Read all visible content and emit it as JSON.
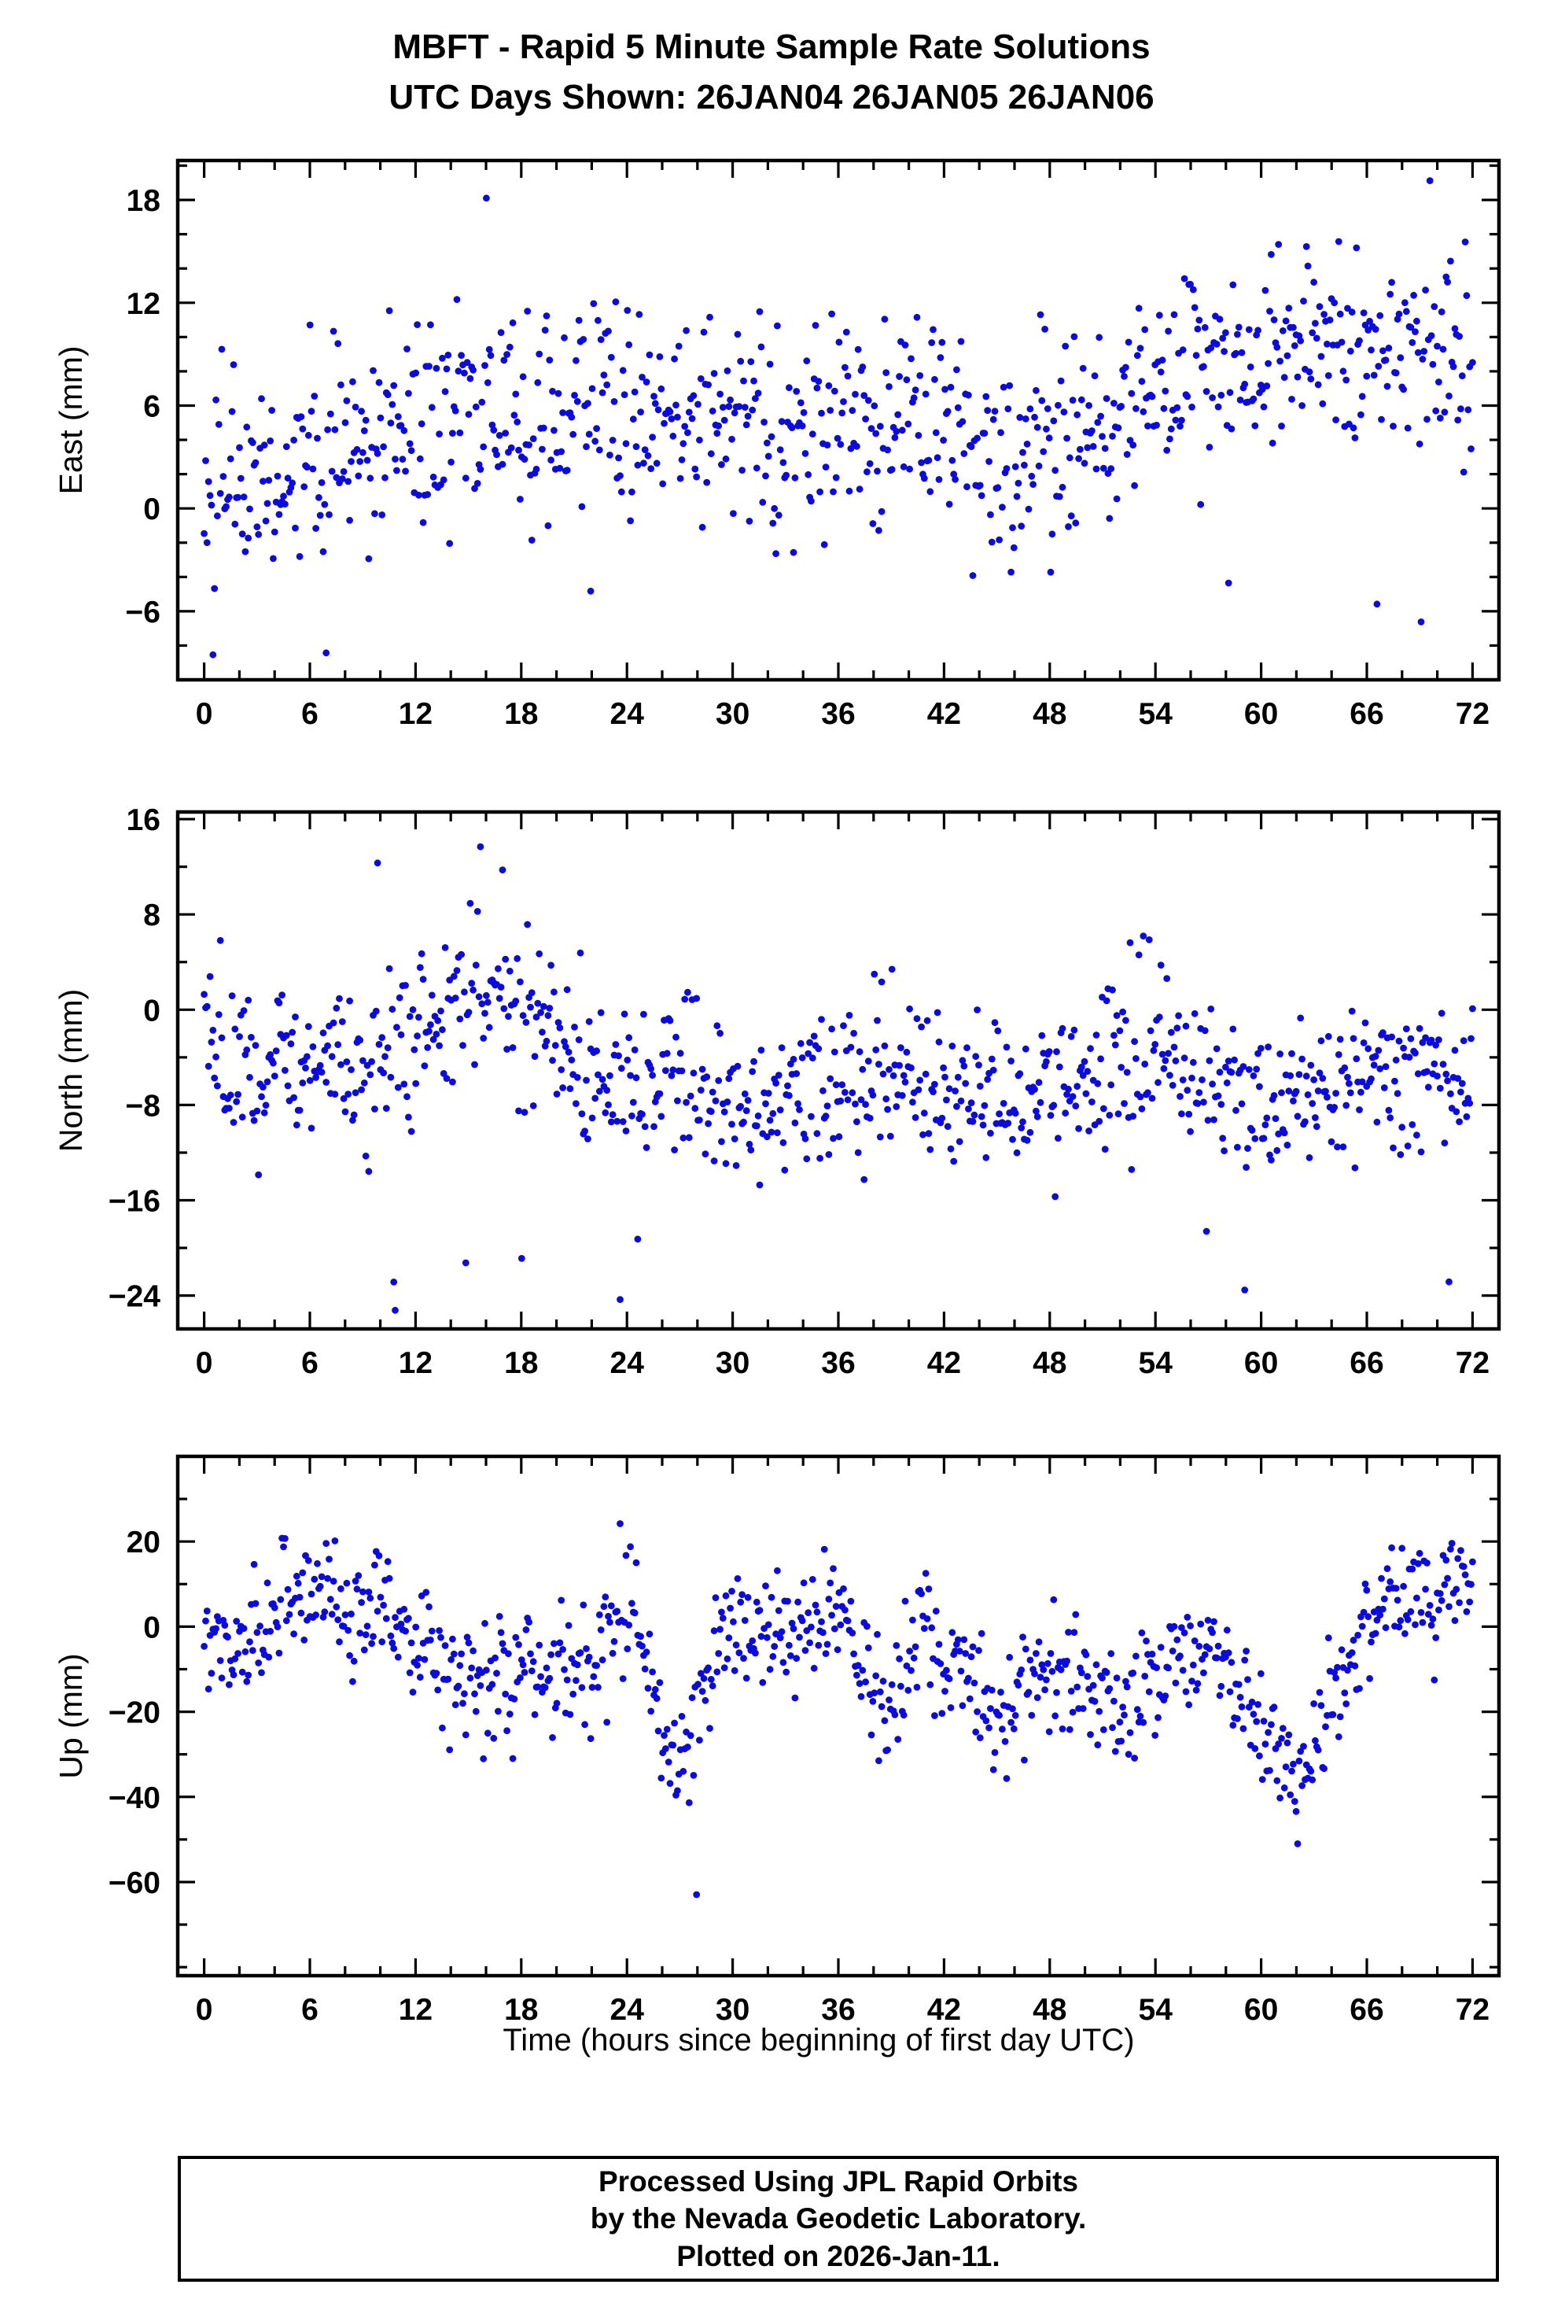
{
  "title": {
    "line1": "MBFT - Rapid 5 Minute Sample Rate Solutions",
    "line2": "UTC Days Shown:  26JAN04 26JAN05 26JAN06"
  },
  "xlabel": "Time (hours since beginning of first day UTC)",
  "marker_color": "#0b0bdd",
  "footer": {
    "line1": "Processed Using JPL Rapid Orbits",
    "line2": "by the Nevada Geodetic Laboratory.",
    "line3": "Plotted on 2026-Jan-11."
  },
  "chart_data": [
    {
      "name": "east",
      "type": "scatter",
      "ylabel": "East (mm)",
      "xlim": [
        -1.5,
        73.5
      ],
      "ylim": [
        -10,
        20.3
      ],
      "xticks": [
        0,
        6,
        12,
        18,
        24,
        30,
        36,
        42,
        48,
        54,
        60,
        66,
        72
      ],
      "xminor": 2,
      "yticks": [
        -6,
        0,
        6,
        12,
        18
      ],
      "yminor": 2,
      "n_points": 864,
      "seed": 42,
      "std": 3.1,
      "outliers": [
        {
          "p": 0.012,
          "range": [
            -9.2,
            -4
          ]
        }
      ],
      "trend": [
        [
          0,
          1.5
        ],
        [
          4,
          2.5
        ],
        [
          8,
          4
        ],
        [
          12,
          4.5
        ],
        [
          16,
          6
        ],
        [
          20,
          5.5
        ],
        [
          24,
          6
        ],
        [
          28,
          5.5
        ],
        [
          32,
          4.5
        ],
        [
          36,
          4.5
        ],
        [
          40,
          4.5
        ],
        [
          44,
          3
        ],
        [
          47,
          2.5
        ],
        [
          50,
          4
        ],
        [
          53,
          6.5
        ],
        [
          56,
          8
        ],
        [
          60,
          8.5
        ],
        [
          64,
          9
        ],
        [
          68,
          9
        ],
        [
          72,
          7.5
        ]
      ]
    },
    {
      "name": "north",
      "type": "scatter",
      "ylabel": "North (mm)",
      "xlim": [
        -1.5,
        73.5
      ],
      "ylim": [
        -26.8,
        16.6
      ],
      "xticks": [
        0,
        6,
        12,
        18,
        24,
        30,
        36,
        42,
        48,
        54,
        60,
        66,
        72
      ],
      "xminor": 2,
      "yticks": [
        -24,
        -16,
        -8,
        0,
        8,
        16
      ],
      "yminor": 4,
      "n_points": 864,
      "seed": 77,
      "std": 3.4,
      "outliers": [
        {
          "p": 0.011,
          "range": [
            -25.5,
            -16
          ]
        },
        {
          "p": 0.005,
          "range": [
            9,
            15.6
          ]
        }
      ],
      "trend": [
        [
          0,
          -3
        ],
        [
          2,
          -5
        ],
        [
          5,
          -5
        ],
        [
          8,
          -4.5
        ],
        [
          11,
          -3
        ],
        [
          13,
          0.5
        ],
        [
          15,
          2
        ],
        [
          17,
          1.5
        ],
        [
          19,
          0
        ],
        [
          21,
          -4
        ],
        [
          24,
          -5.5
        ],
        [
          27,
          -6
        ],
        [
          30,
          -8
        ],
        [
          33,
          -8.5
        ],
        [
          36,
          -6.5
        ],
        [
          39,
          -6
        ],
        [
          42,
          -7
        ],
        [
          45,
          -7.5
        ],
        [
          48,
          -6
        ],
        [
          51,
          -5
        ],
        [
          54,
          -4.5
        ],
        [
          57,
          -6
        ],
        [
          60,
          -8
        ],
        [
          63,
          -7
        ],
        [
          66,
          -6
        ],
        [
          69,
          -5.5
        ],
        [
          72,
          -4.5
        ]
      ]
    },
    {
      "name": "up",
      "type": "scatter",
      "ylabel": "Up (mm)",
      "xlim": [
        -1.5,
        73.5
      ],
      "ylim": [
        -82,
        40
      ],
      "xticks": [
        0,
        6,
        12,
        18,
        24,
        30,
        36,
        42,
        48,
        54,
        60,
        66,
        72
      ],
      "xminor": 2,
      "yticks": [
        -60,
        -40,
        -20,
        0,
        20
      ],
      "yminor": 10,
      "n_points": 864,
      "seed": 1234,
      "std": 7,
      "outliers": [
        {
          "p": 0.004,
          "range": [
            -68,
            -52
          ]
        }
      ],
      "trend": [
        [
          0,
          0
        ],
        [
          2,
          -8
        ],
        [
          4,
          5
        ],
        [
          6,
          12
        ],
        [
          8,
          5
        ],
        [
          10,
          5
        ],
        [
          12,
          -2
        ],
        [
          14,
          -12
        ],
        [
          16,
          -12
        ],
        [
          18,
          -8
        ],
        [
          20,
          -15
        ],
        [
          22,
          -8
        ],
        [
          24,
          5
        ],
        [
          25,
          -5
        ],
        [
          26,
          -25
        ],
        [
          27,
          -35
        ],
        [
          28,
          -20
        ],
        [
          29,
          -5
        ],
        [
          30,
          0
        ],
        [
          32,
          -3
        ],
        [
          34,
          0
        ],
        [
          36,
          5
        ],
        [
          37,
          -5
        ],
        [
          38,
          -15
        ],
        [
          39,
          -25
        ],
        [
          40,
          -5
        ],
        [
          41,
          0
        ],
        [
          42,
          -10
        ],
        [
          44,
          -12
        ],
        [
          45,
          -25
        ],
        [
          46,
          -20
        ],
        [
          47,
          -12
        ],
        [
          48,
          -10
        ],
        [
          49,
          -8
        ],
        [
          50,
          -15
        ],
        [
          51,
          -12
        ],
        [
          52,
          -20
        ],
        [
          53,
          -15
        ],
        [
          54,
          -10
        ],
        [
          55,
          -12
        ],
        [
          56,
          -8
        ],
        [
          57,
          -2
        ],
        [
          58,
          -10
        ],
        [
          59,
          -18
        ],
        [
          60,
          -25
        ],
        [
          61,
          -30
        ],
        [
          62,
          -38
        ],
        [
          63,
          -30
        ],
        [
          64,
          -15
        ],
        [
          65,
          -12
        ],
        [
          66,
          5
        ],
        [
          67,
          8
        ],
        [
          68,
          5
        ],
        [
          69,
          8
        ],
        [
          70,
          5
        ],
        [
          71,
          10
        ],
        [
          72,
          8
        ]
      ]
    }
  ]
}
